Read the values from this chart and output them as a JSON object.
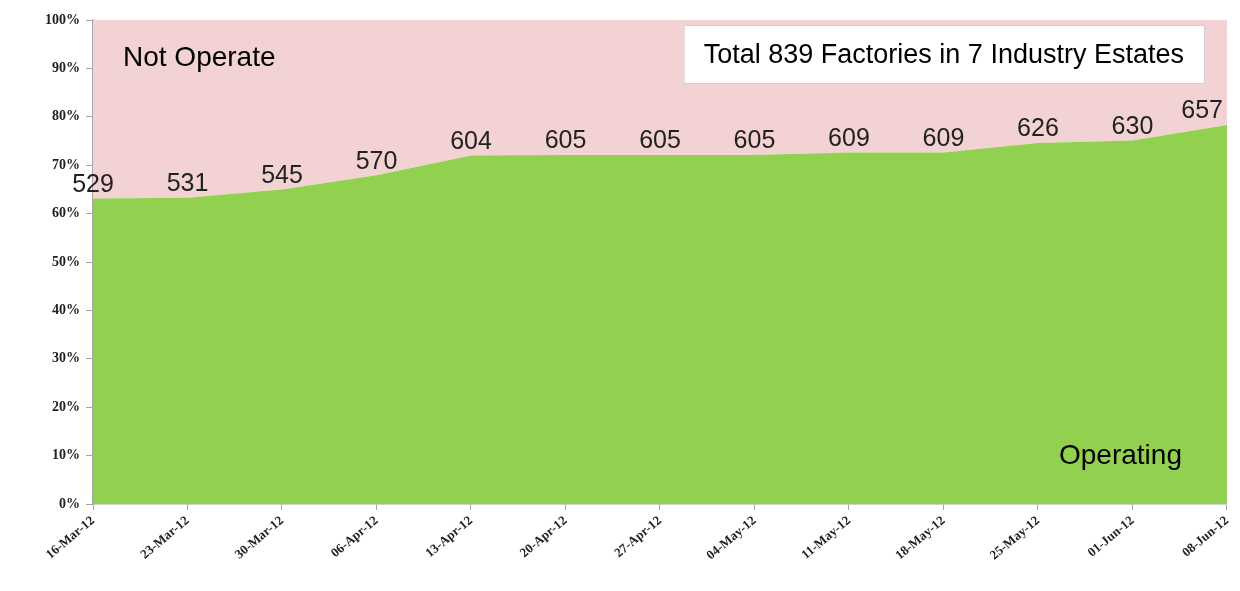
{
  "chart_data": {
    "type": "area",
    "stacked": true,
    "title": "Total 839 Factories in 7 Industry Estates",
    "categories": [
      "16-Mar-12",
      "23-Mar-12",
      "30-Mar-12",
      "06-Apr-12",
      "13-Apr-12",
      "20-Apr-12",
      "27-Apr-12",
      "04-May-12",
      "11-May-12",
      "18-May-12",
      "25-May-12",
      "01-Jun-12",
      "08-Jun-12"
    ],
    "series": [
      {
        "name": "Operating",
        "color": "#92d050",
        "values": [
          63.1,
          63.3,
          65.0,
          67.9,
          72.0,
          72.1,
          72.1,
          72.1,
          72.6,
          72.6,
          74.6,
          75.1,
          78.3
        ]
      },
      {
        "name": "Not Operate",
        "color": "#f2d2d2",
        "values": [
          36.9,
          36.7,
          35.0,
          32.1,
          28.0,
          27.9,
          27.9,
          27.9,
          27.4,
          27.4,
          25.4,
          24.9,
          21.7
        ]
      }
    ],
    "annotations": [
      {
        "text": "529",
        "x": "16-Mar-12",
        "y": 63.1
      },
      {
        "text": "531",
        "x": "23-Mar-12",
        "y": 63.3
      },
      {
        "text": "545",
        "x": "30-Mar-12",
        "y": 65.0
      },
      {
        "text": "570",
        "x": "06-Apr-12",
        "y": 67.9
      },
      {
        "text": "604",
        "x": "13-Apr-12",
        "y": 72.0
      },
      {
        "text": "605",
        "x": "20-Apr-12",
        "y": 72.1
      },
      {
        "text": "605",
        "x": "27-Apr-12",
        "y": 72.1
      },
      {
        "text": "605",
        "x": "04-May-12",
        "y": 72.1
      },
      {
        "text": "609",
        "x": "11-May-12",
        "y": 72.6
      },
      {
        "text": "609",
        "x": "18-May-12",
        "y": 72.6
      },
      {
        "text": "626",
        "x": "25-May-12",
        "y": 74.6
      },
      {
        "text": "630",
        "x": "01-Jun-12",
        "y": 75.1
      },
      {
        "text": "657",
        "x": "08-Jun-12",
        "y": 78.3
      }
    ],
    "ylim": [
      0,
      100
    ],
    "yticks": [
      {
        "value": 0,
        "label": "0%"
      },
      {
        "value": 10,
        "label": "10%"
      },
      {
        "value": 20,
        "label": "20%"
      },
      {
        "value": 30,
        "label": "30%"
      },
      {
        "value": 40,
        "label": "40%"
      },
      {
        "value": 50,
        "label": "50%"
      },
      {
        "value": 60,
        "label": "60%"
      },
      {
        "value": 70,
        "label": "70%"
      },
      {
        "value": 80,
        "label": "80%"
      },
      {
        "value": 90,
        "label": "90%"
      },
      {
        "value": 100,
        "label": "100%"
      }
    ],
    "legend": false
  }
}
